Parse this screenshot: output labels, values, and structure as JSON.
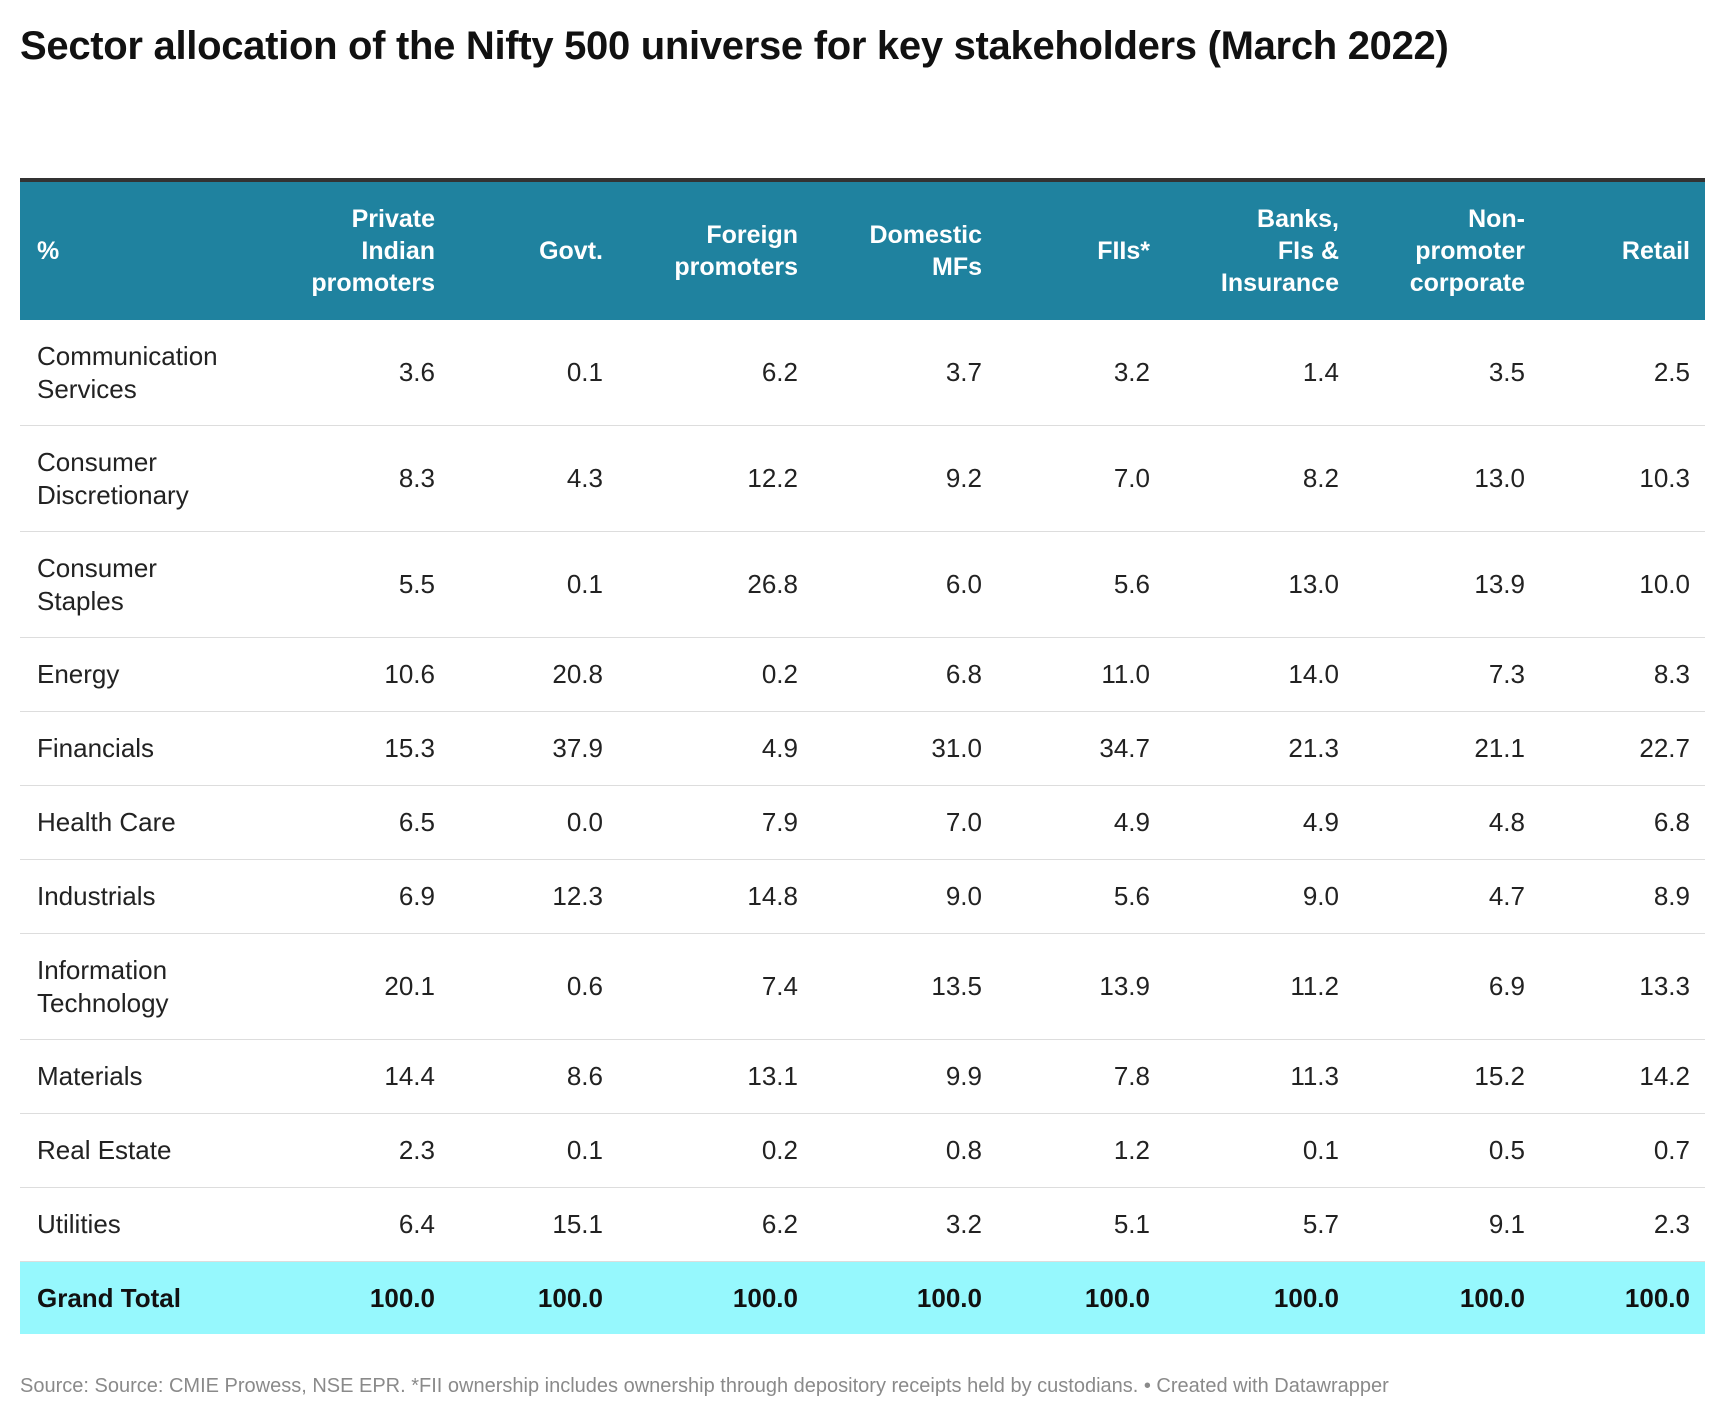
{
  "title": "Sector allocation of the Nifty 500 universe for key stakeholders (March 2022)",
  "source": "Source: Source: CMIE Prowess, NSE EPR. *FII ownership includes ownership through depository receipts held by custodians. • Created with Datawrapper",
  "chart_data": {
    "type": "table",
    "header_color": "#1f829f",
    "total_row_color": "#96f8fd",
    "columns": [
      "%",
      "Private\nIndian\npromoters",
      "Govt.",
      "Foreign\npromoters",
      "Domestic\nMFs",
      "FIIs*",
      "Banks,\nFIs &\nInsurance",
      "Non-\npromoter\ncorporate",
      "Retail"
    ],
    "rows": [
      {
        "sector": "Communication Services",
        "values": [
          "3.6",
          "0.1",
          "6.2",
          "3.7",
          "3.2",
          "1.4",
          "3.5",
          "2.5"
        ]
      },
      {
        "sector": "Consumer Discretionary",
        "values": [
          "8.3",
          "4.3",
          "12.2",
          "9.2",
          "7.0",
          "8.2",
          "13.0",
          "10.3"
        ]
      },
      {
        "sector": "Consumer Staples",
        "values": [
          "5.5",
          "0.1",
          "26.8",
          "6.0",
          "5.6",
          "13.0",
          "13.9",
          "10.0"
        ]
      },
      {
        "sector": "Energy",
        "values": [
          "10.6",
          "20.8",
          "0.2",
          "6.8",
          "11.0",
          "14.0",
          "7.3",
          "8.3"
        ]
      },
      {
        "sector": "Financials",
        "values": [
          "15.3",
          "37.9",
          "4.9",
          "31.0",
          "34.7",
          "21.3",
          "21.1",
          "22.7"
        ]
      },
      {
        "sector": "Health Care",
        "values": [
          "6.5",
          "0.0",
          "7.9",
          "7.0",
          "4.9",
          "4.9",
          "4.8",
          "6.8"
        ]
      },
      {
        "sector": "Industrials",
        "values": [
          "6.9",
          "12.3",
          "14.8",
          "9.0",
          "5.6",
          "9.0",
          "4.7",
          "8.9"
        ]
      },
      {
        "sector": "Information Technology",
        "values": [
          "20.1",
          "0.6",
          "7.4",
          "13.5",
          "13.9",
          "11.2",
          "6.9",
          "13.3"
        ]
      },
      {
        "sector": "Materials",
        "values": [
          "14.4",
          "8.6",
          "13.1",
          "9.9",
          "7.8",
          "11.3",
          "15.2",
          "14.2"
        ]
      },
      {
        "sector": "Real Estate",
        "values": [
          "2.3",
          "0.1",
          "0.2",
          "0.8",
          "1.2",
          "0.1",
          "0.5",
          "0.7"
        ]
      },
      {
        "sector": "Utilities",
        "values": [
          "6.4",
          "15.1",
          "6.2",
          "3.2",
          "5.1",
          "5.7",
          "9.1",
          "2.3"
        ]
      }
    ],
    "total_row": {
      "sector": "Grand Total",
      "values": [
        "100.0",
        "100.0",
        "100.0",
        "100.0",
        "100.0",
        "100.0",
        "100.0",
        "100.0"
      ]
    }
  }
}
